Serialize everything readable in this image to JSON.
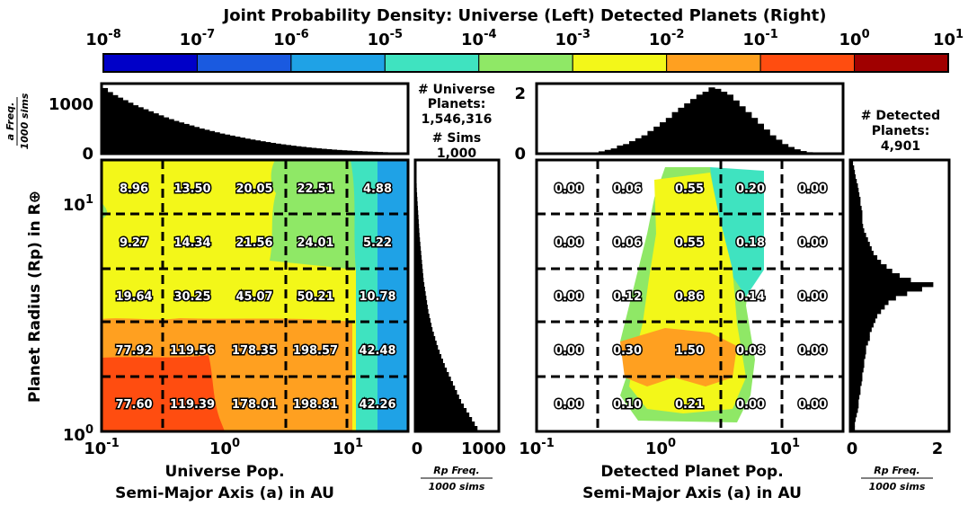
{
  "title": "Joint Probability Density: Universe (Left) Detected Planets (Right)",
  "colorbar": {
    "exponents": [
      "-8",
      "-7",
      "-6",
      "-5",
      "-4",
      "-3",
      "-2",
      "-1",
      "0",
      "1"
    ],
    "base": "10",
    "colors": [
      "#0000c8",
      "#1a5ae0",
      "#1fa2e6",
      "#3fe3c0",
      "#8fe866",
      "#f3f719",
      "#ffa020",
      "#ff4d10",
      "#a00000"
    ]
  },
  "left_panel": {
    "xlabel_line1": "Universe Pop.",
    "xlabel_line2": "Semi-Major Axis (a) in AU",
    "ylabel": "Planet Radius (Rp) in R⊕",
    "x_ticks": [
      "10",
      "10",
      "10"
    ],
    "x_tick_exps": [
      "-1",
      "0",
      "1"
    ],
    "y_ticks": [
      "10",
      "10"
    ],
    "y_tick_exps": [
      "0",
      "1"
    ],
    "grid_values": [
      [
        "8.96",
        "13.50",
        "20.05",
        "22.51",
        "4.88"
      ],
      [
        "9.27",
        "14.34",
        "21.56",
        "24.01",
        "5.22"
      ],
      [
        "19.64",
        "30.25",
        "45.07",
        "50.21",
        "10.78"
      ],
      [
        "77.92",
        "119.56",
        "178.35",
        "198.57",
        "42.48"
      ],
      [
        "77.60",
        "119.39",
        "178.01",
        "198.81",
        "42.26"
      ]
    ],
    "top_hist_ylabel_line1": "a Freq.",
    "top_hist_ylabel_line2": "1000 sims",
    "top_hist_ticks": [
      "1000",
      "0"
    ],
    "top_hist_values": [
      1280,
      1200,
      1140,
      1090,
      1040,
      990,
      940,
      900,
      860,
      820,
      780,
      740,
      700,
      665,
      630,
      600,
      570,
      540,
      510,
      480,
      455,
      430,
      405,
      380,
      360,
      340,
      320,
      300,
      280,
      262,
      245,
      228,
      212,
      196,
      181,
      167,
      154,
      141,
      129,
      118,
      107,
      97,
      88,
      79,
      71,
      63,
      56,
      50,
      44,
      38,
      33,
      28,
      24,
      20,
      16,
      12,
      9,
      6,
      4,
      2
    ],
    "right_hist_xlabel_line1": "Rp Freq.",
    "right_hist_xlabel_line2": "1000 sims",
    "right_hist_ticks": [
      "0",
      "1000"
    ],
    "right_hist_values": [
      0,
      0,
      0,
      2,
      4,
      8,
      10,
      14,
      18,
      22,
      26,
      30,
      34,
      38,
      42,
      46,
      50,
      56,
      62,
      68,
      74,
      80,
      86,
      92,
      98,
      104,
      110,
      120,
      130,
      140,
      150,
      160,
      170,
      180,
      195,
      210,
      225,
      240,
      260,
      280,
      300,
      320,
      345,
      370,
      395,
      420,
      450,
      480,
      510,
      540,
      570,
      600,
      630,
      660,
      700,
      740,
      780,
      820,
      860,
      900
    ]
  },
  "universe_stats": {
    "line1": "# Universe",
    "line2": "Planets:",
    "line3": "1,546,316",
    "line4": "# Sims",
    "line5": "1,000"
  },
  "right_panel": {
    "xlabel_line1": "Detected Planet Pop.",
    "xlabel_line2": "Semi-Major Axis (a) in AU",
    "x_ticks": [
      "10",
      "10",
      "10"
    ],
    "x_tick_exps": [
      "-1",
      "0",
      "1"
    ],
    "grid_values": [
      [
        "0.00",
        "0.06",
        "0.55",
        "0.20",
        "0.00"
      ],
      [
        "0.00",
        "0.06",
        "0.55",
        "0.18",
        "0.00"
      ],
      [
        "0.00",
        "0.12",
        "0.86",
        "0.14",
        "0.00"
      ],
      [
        "0.00",
        "0.30",
        "1.50",
        "0.08",
        "0.00"
      ],
      [
        "0.00",
        "0.10",
        "0.21",
        "0.00",
        "0.00"
      ]
    ],
    "top_hist_ticks": [
      "2",
      "0"
    ],
    "top_hist_values": [
      0,
      0,
      0,
      0,
      0,
      0,
      0,
      0,
      0,
      0,
      0.05,
      0.1,
      0.15,
      0.25,
      0.3,
      0.4,
      0.5,
      0.6,
      0.75,
      0.9,
      1.05,
      1.2,
      1.4,
      1.55,
      1.7,
      1.85,
      2.0,
      2.1,
      2.25,
      2.2,
      2.1,
      2.0,
      1.8,
      1.6,
      1.4,
      1.2,
      1.0,
      0.8,
      0.6,
      0.45,
      0.3,
      0.2,
      0.12,
      0.06,
      0.02,
      0,
      0,
      0,
      0,
      0
    ],
    "right_hist_xlabel_line1": "Rp Freq.",
    "right_hist_xlabel_line2": "1000 sims",
    "right_hist_ticks": [
      "0",
      "2"
    ],
    "right_hist_values": [
      0.05,
      0.08,
      0.1,
      0.12,
      0.15,
      0.18,
      0.2,
      0.22,
      0.25,
      0.25,
      0.28,
      0.3,
      0.3,
      0.3,
      0.32,
      0.35,
      0.4,
      0.45,
      0.5,
      0.55,
      0.6,
      0.7,
      0.8,
      0.95,
      1.1,
      1.3,
      1.6,
      2.2,
      1.9,
      1.5,
      1.2,
      1.0,
      0.9,
      0.8,
      0.7,
      0.65,
      0.6,
      0.55,
      0.5,
      0.5,
      0.45,
      0.4,
      0.4,
      0.38,
      0.35,
      0.35,
      0.33,
      0.3,
      0.3,
      0.28,
      0.25,
      0.25,
      0.22,
      0.2,
      0.2,
      0.18,
      0.15,
      0.12,
      0.1,
      0.1
    ]
  },
  "detected_stats": {
    "line1": "# Detected",
    "line2": "Planets:",
    "line3": "4,901"
  },
  "chart_data": {
    "type": "heatmap",
    "title": "Joint Probability Density: Universe (Left) Detected Planets (Right)",
    "panels": [
      {
        "name": "Universe Pop.",
        "xlabel": "Semi-Major Axis (a) in AU",
        "ylabel": "Planet Radius (Rp) in R⊕",
        "xscale": "log",
        "yscale": "log",
        "xlim": [
          0.1,
          30
        ],
        "ylim": [
          1,
          16
        ],
        "rows_top_to_bottom": [
          [
            8.96,
            13.5,
            20.05,
            22.51,
            4.88
          ],
          [
            9.27,
            14.34,
            21.56,
            24.01,
            5.22
          ],
          [
            19.64,
            30.25,
            45.07,
            50.21,
            10.78
          ],
          [
            77.92,
            119.56,
            178.35,
            198.57,
            42.48
          ],
          [
            77.6,
            119.39,
            178.01,
            198.81,
            42.26
          ]
        ]
      },
      {
        "name": "Detected Planet Pop.",
        "xlabel": "Semi-Major Axis (a) in AU",
        "xscale": "log",
        "yscale": "log",
        "xlim": [
          0.1,
          30
        ],
        "ylim": [
          1,
          16
        ],
        "rows_top_to_bottom": [
          [
            0.0,
            0.06,
            0.55,
            0.2,
            0.0
          ],
          [
            0.0,
            0.06,
            0.55,
            0.18,
            0.0
          ],
          [
            0.0,
            0.12,
            0.86,
            0.14,
            0.0
          ],
          [
            0.0,
            0.3,
            1.5,
            0.08,
            0.0
          ],
          [
            0.0,
            0.1,
            0.21,
            0.0,
            0.0
          ]
        ]
      }
    ],
    "colorbar_range": [
      "1e-8",
      "1e1"
    ],
    "colorbar_scale": "log"
  }
}
